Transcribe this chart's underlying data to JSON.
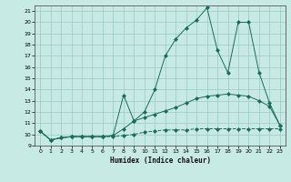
{
  "xlabel": "Humidex (Indice chaleur)",
  "xlim": [
    -0.5,
    23.5
  ],
  "ylim": [
    9,
    21.5
  ],
  "xticks": [
    0,
    1,
    2,
    3,
    4,
    5,
    6,
    7,
    8,
    9,
    10,
    11,
    12,
    13,
    14,
    15,
    16,
    17,
    18,
    19,
    20,
    21,
    22,
    23
  ],
  "yticks": [
    9,
    10,
    11,
    12,
    13,
    14,
    15,
    16,
    17,
    18,
    19,
    20,
    21
  ],
  "background_color": "#c8eae4",
  "grid_color": "#a0cfc8",
  "line_color": "#1a6b5a",
  "line1_x": [
    0,
    1,
    2,
    3,
    4,
    5,
    6,
    7,
    8,
    9,
    10,
    11,
    12,
    13,
    14,
    15,
    16,
    17,
    18,
    19,
    20,
    21,
    22,
    23
  ],
  "line1_y": [
    10.3,
    9.5,
    9.7,
    9.8,
    9.8,
    9.8,
    9.8,
    9.8,
    9.9,
    10.0,
    10.2,
    10.3,
    10.4,
    10.4,
    10.4,
    10.5,
    10.5,
    10.5,
    10.5,
    10.5,
    10.5,
    10.5,
    10.5,
    10.5
  ],
  "line2_x": [
    0,
    1,
    2,
    3,
    4,
    5,
    6,
    7,
    8,
    9,
    10,
    11,
    12,
    13,
    14,
    15,
    16,
    17,
    18,
    19,
    20,
    21,
    22,
    23
  ],
  "line2_y": [
    10.3,
    9.5,
    9.7,
    9.8,
    9.8,
    9.8,
    9.8,
    9.9,
    10.5,
    11.2,
    11.5,
    11.8,
    12.1,
    12.4,
    12.8,
    13.2,
    13.4,
    13.5,
    13.6,
    13.5,
    13.4,
    13.0,
    12.5,
    10.8
  ],
  "line3_x": [
    0,
    1,
    2,
    3,
    4,
    5,
    6,
    7,
    8,
    9,
    10,
    11,
    12,
    13,
    14,
    15,
    16,
    17,
    18,
    19,
    20,
    21,
    22,
    23
  ],
  "line3_y": [
    10.3,
    9.5,
    9.7,
    9.8,
    9.8,
    9.8,
    9.8,
    9.9,
    13.5,
    11.2,
    12.0,
    14.0,
    17.0,
    18.5,
    19.5,
    20.2,
    21.3,
    17.5,
    15.5,
    20.0,
    20.0,
    15.5,
    12.8,
    10.8
  ]
}
